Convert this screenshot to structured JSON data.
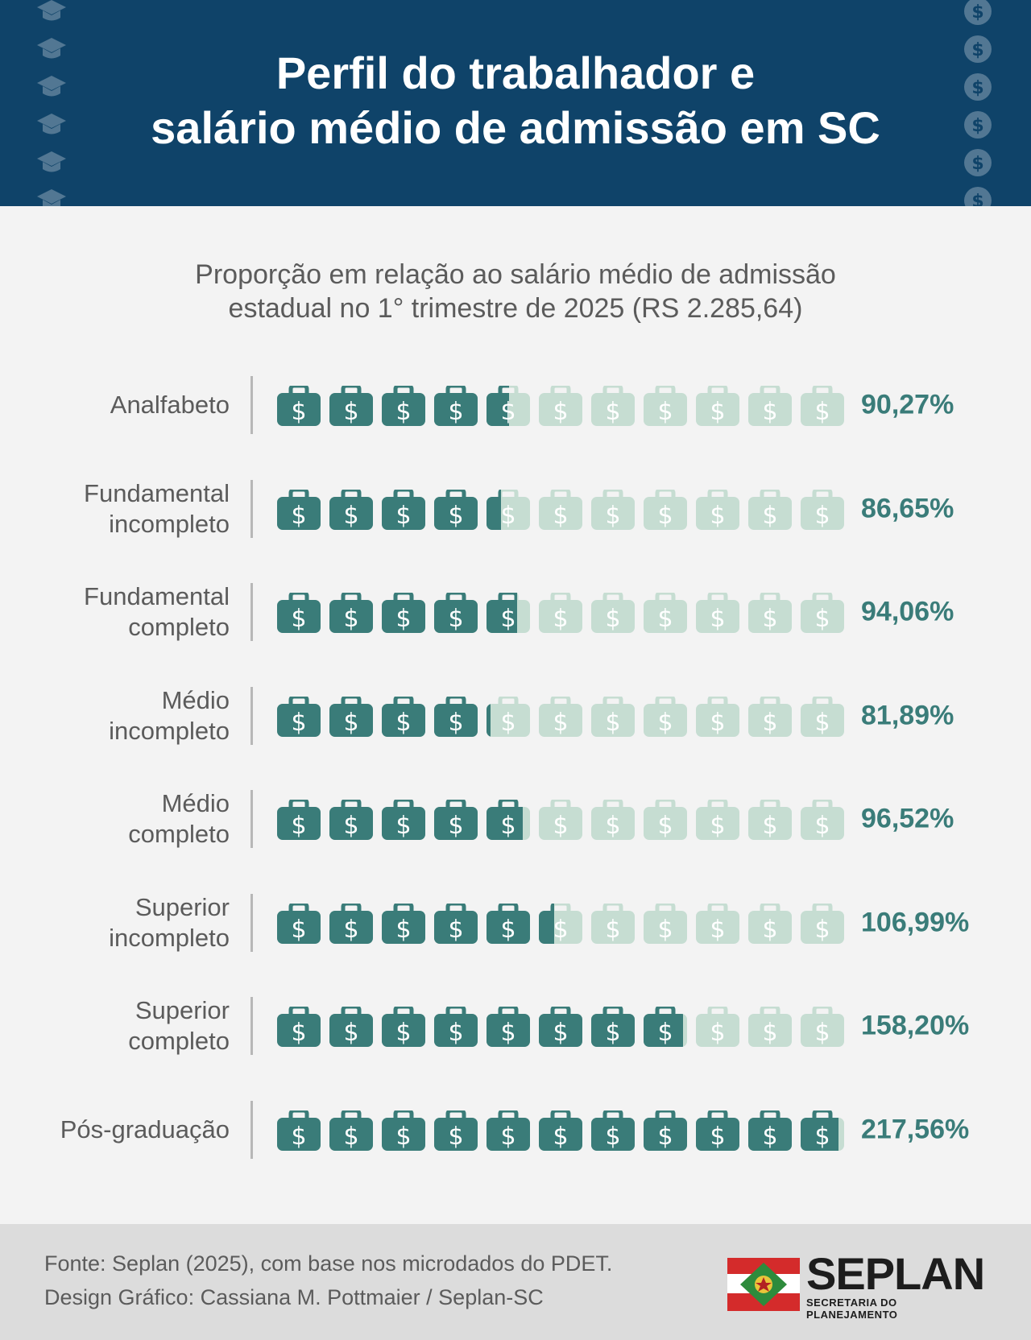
{
  "header": {
    "title_line1": "Perfil do trabalhador e",
    "title_line2": "salário médio de admissão em SC",
    "background": "#0f4369",
    "left_icon": "graduation-cap-icon",
    "right_icon": "dollar-coin-icon"
  },
  "subtitle_line1": "Proporção em relação ao salário médio de admissão",
  "subtitle_line2": "estadual no 1° trimestre de 2025 (RS 2.285,64)",
  "chart_data": {
    "type": "bar",
    "icon": "money-bag-icon",
    "icon_unit_percent": 20,
    "icons_per_row": 11,
    "categories": [
      "Analfabeto",
      "Fundamental\nincompleto",
      "Fundamental\ncompleto",
      "Médio\nincompleto",
      "Médio\ncompleto",
      "Superior\nincompleto",
      "Superior\ncompleto",
      "Pós-graduação"
    ],
    "values": [
      90.27,
      86.65,
      94.06,
      81.89,
      96.52,
      106.99,
      158.2,
      217.56
    ],
    "value_labels": [
      "90,27%",
      "86,65%",
      "94,06%",
      "81,89%",
      "96,52%",
      "106,99%",
      "158,20%",
      "217,56%"
    ],
    "colors": {
      "filled": "#3a7c79",
      "empty": "#c6ddd2",
      "value_text": "#3a7c79"
    }
  },
  "footer": {
    "source": "Fonte: Seplan (2025), com base nos microdados do PDET.",
    "design": "Design Gráfico: Cassiana M. Pottmaier / Seplan-SC",
    "logo_word": "SEPLAN",
    "logo_sub": "SECRETARIA DO PLANEJAMENTO"
  }
}
